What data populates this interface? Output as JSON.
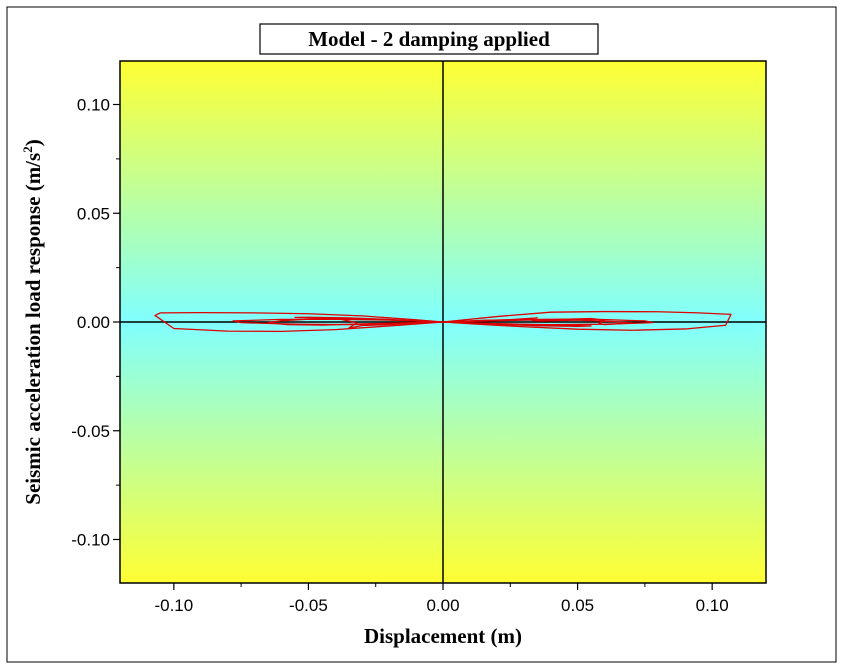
{
  "chart_data": {
    "type": "line",
    "title": "Model - 2 damping applied",
    "xlabel": "Displacement (m)",
    "ylabel_main": "Seismic acceleration load response (m/s",
    "ylabel_sup": "2",
    "ylabel_close": ")",
    "xlim": [
      -0.12,
      0.12
    ],
    "ylim": [
      -0.12,
      0.12
    ],
    "x_ticks": [
      -0.1,
      -0.05,
      0.0,
      0.05,
      0.1
    ],
    "x_tick_labels": [
      "-0.10",
      "-0.05",
      "0.00",
      "0.05",
      "0.10"
    ],
    "y_ticks": [
      -0.1,
      -0.05,
      0.0,
      0.05,
      0.1
    ],
    "y_tick_labels": [
      "-0.10",
      "-0.05",
      "0.00",
      "0.05",
      "0.10"
    ],
    "grid": false,
    "background": {
      "edge": "#ffff33",
      "center": "#80ffff"
    },
    "series_color": "#dd0000",
    "series": [
      {
        "x": [
          0.0,
          0.02,
          0.04,
          0.06,
          0.08,
          0.095,
          0.107,
          0.105,
          0.09,
          0.07,
          0.05,
          0.03,
          0.01,
          0.0,
          -0.01,
          -0.03,
          -0.05,
          -0.07,
          -0.09,
          -0.105,
          -0.107,
          -0.1,
          -0.08,
          -0.06,
          -0.04,
          -0.02,
          0.0
        ],
        "y": [
          0.0,
          0.0025,
          0.0045,
          0.0048,
          0.0047,
          0.0042,
          0.0035,
          -0.0015,
          -0.0032,
          -0.0038,
          -0.0033,
          -0.0022,
          -0.0008,
          0.0,
          0.001,
          0.0028,
          0.0038,
          0.0042,
          0.0043,
          0.0042,
          0.003,
          -0.003,
          -0.0042,
          -0.0043,
          -0.0035,
          -0.0018,
          0.0
        ]
      },
      {
        "x": [
          0.0,
          0.015,
          0.035,
          0.055,
          0.075,
          0.078,
          0.06,
          0.04,
          0.02,
          0.0,
          -0.02,
          -0.04,
          -0.06,
          -0.078,
          -0.075,
          -0.055,
          -0.035,
          -0.015,
          0.0
        ],
        "y": [
          0.0,
          0.0008,
          0.0012,
          0.0013,
          0.0005,
          -0.0003,
          -0.001,
          -0.0012,
          -0.0009,
          0.0,
          0.0009,
          0.0012,
          0.0012,
          0.0005,
          -0.0003,
          -0.001,
          -0.0012,
          -0.0008,
          0.0
        ]
      },
      {
        "x": [
          0.0,
          0.02,
          0.04,
          0.055,
          0.06,
          0.058,
          0.06,
          0.065,
          0.07,
          0.063,
          0.05,
          0.035,
          0.03,
          0.035,
          0.025,
          0.01,
          0.0,
          -0.01,
          -0.02,
          -0.03,
          -0.035,
          -0.032,
          -0.04,
          -0.05,
          -0.06,
          -0.065,
          -0.058,
          -0.045,
          -0.03,
          -0.015,
          0.0
        ],
        "y": [
          0.0,
          0.0006,
          0.0011,
          0.0016,
          0.0008,
          -0.0006,
          -0.0012,
          -0.0008,
          -0.0004,
          0.0002,
          0.0009,
          0.0004,
          0.0014,
          0.0019,
          0.0011,
          0.0004,
          0.0,
          -0.0005,
          -0.0012,
          -0.0016,
          -0.0028,
          -0.0004,
          0.0018,
          0.0013,
          0.0006,
          -0.0003,
          -0.0012,
          -0.0014,
          -0.0009,
          -0.0004,
          0.0
        ]
      },
      {
        "x": [
          0.0,
          -0.01,
          -0.025,
          -0.04,
          -0.055,
          -0.05,
          -0.035,
          -0.02,
          -0.01,
          0.0,
          0.01,
          0.02,
          0.035,
          0.05,
          0.055,
          0.04,
          0.025,
          0.01,
          0.0
        ],
        "y": [
          0.0,
          0.0005,
          0.0012,
          0.0018,
          0.0021,
          0.0022,
          0.0019,
          0.0012,
          0.0005,
          0.0,
          -0.0005,
          -0.0011,
          -0.0017,
          -0.002,
          -0.0018,
          -0.0014,
          -0.0009,
          -0.0004,
          0.0
        ]
      }
    ]
  }
}
